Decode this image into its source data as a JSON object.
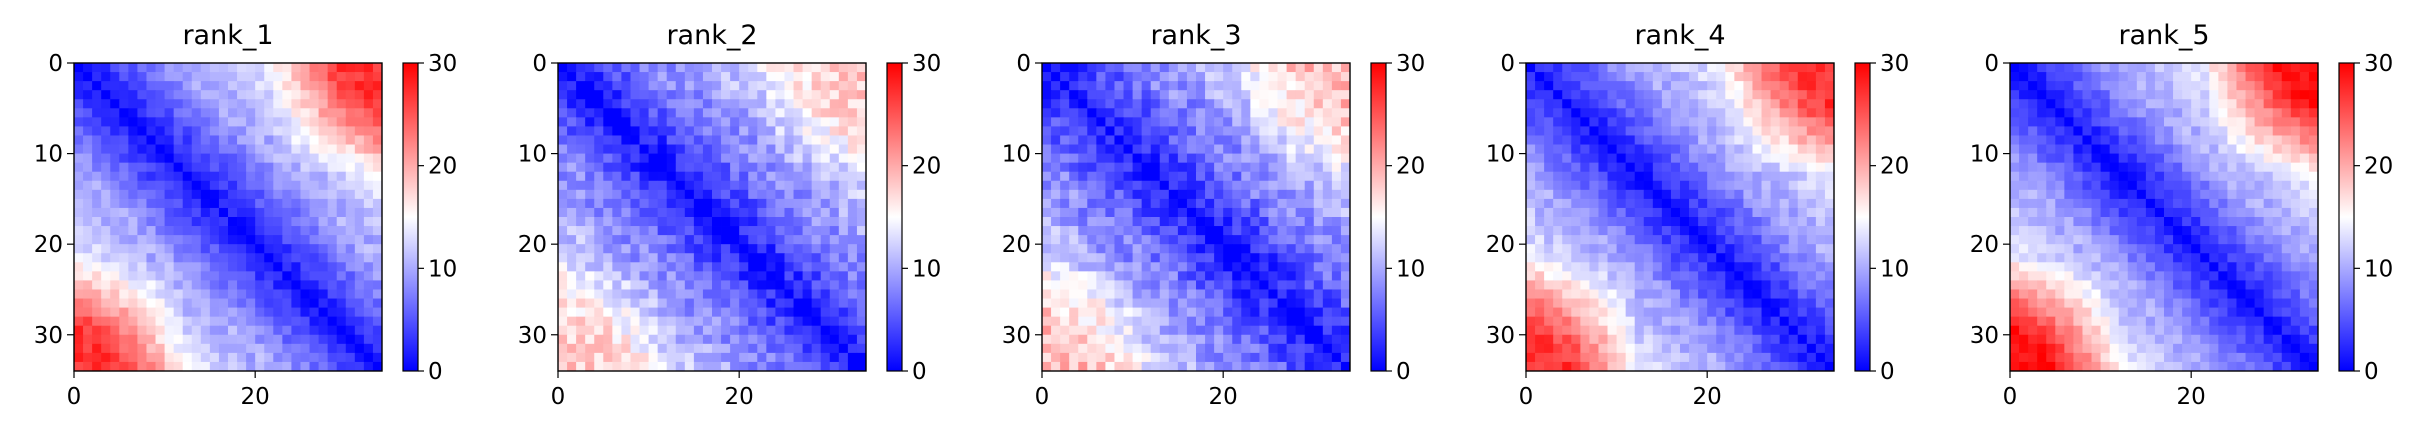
{
  "chart_data": {
    "type": "heatmap",
    "colormap": "bwr",
    "colors": {
      "low": "#0000ff",
      "mid": "#ffffff",
      "high": "#ff0000",
      "axis": "#000000"
    },
    "matrix_size": 34,
    "vmin": 0,
    "vmax": 30,
    "x_ticks": [
      0,
      20
    ],
    "y_ticks": [
      0,
      10,
      20,
      30
    ],
    "colorbar_ticks": [
      0,
      10,
      20,
      30
    ],
    "panels": [
      {
        "title": "rank_1",
        "params": {
          "far": 15.5,
          "block": 12,
          "tl": 4,
          "tr": 26,
          "bl": 27,
          "noise": 1.6,
          "seed": 11
        }
      },
      {
        "title": "rank_2",
        "params": {
          "far": 13,
          "block": 11,
          "tl": 3,
          "tr": 22,
          "bl": 18,
          "noise": 2.4,
          "seed": 23
        }
      },
      {
        "title": "rank_3",
        "params": {
          "far": 12.5,
          "block": 11,
          "tl": 3,
          "tr": 18,
          "bl": 19,
          "noise": 2.6,
          "seed": 37
        }
      },
      {
        "title": "rank_4",
        "params": {
          "far": 15.5,
          "block": 12,
          "tl": 4,
          "tr": 25,
          "bl": 27,
          "noise": 1.7,
          "seed": 41
        }
      },
      {
        "title": "rank_5",
        "params": {
          "far": 16,
          "block": 12,
          "tl": 4,
          "tr": 25,
          "bl": 29,
          "noise": 1.5,
          "seed": 53
        }
      }
    ]
  }
}
